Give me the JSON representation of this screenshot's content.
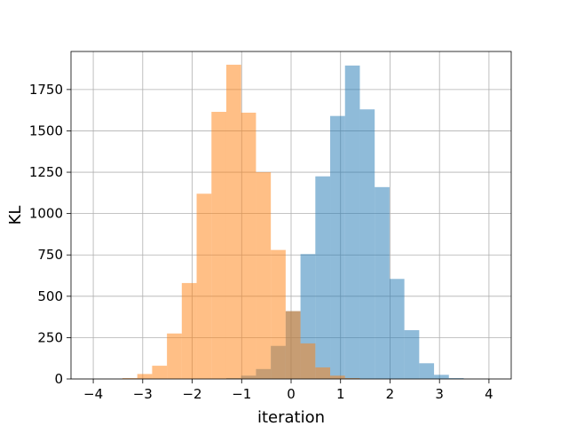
{
  "chart_data": {
    "type": "histogram",
    "title": "",
    "xlabel": "iteration",
    "ylabel": "KL",
    "xlim": [
      -4.45,
      4.45
    ],
    "ylim": [
      0,
      1980
    ],
    "xticks": [
      -4,
      -3,
      -2,
      -1,
      0,
      1,
      2,
      3,
      4
    ],
    "xtick_labels": [
      "−4",
      "−3",
      "−2",
      "−1",
      "0",
      "1",
      "2",
      "3",
      "4"
    ],
    "yticks": [
      0,
      250,
      500,
      750,
      1000,
      1250,
      1500,
      1750
    ],
    "ytick_labels": [
      "0",
      "250",
      "500",
      "750",
      "1000",
      "1250",
      "1500",
      "1750"
    ],
    "grid": true,
    "bin_edges": [
      -3.41,
      -3.11,
      -2.81,
      -2.51,
      -2.21,
      -1.91,
      -1.61,
      -1.31,
      -1.01,
      -0.71,
      -0.41,
      -0.11,
      0.19,
      0.49,
      0.79,
      1.09,
      1.39,
      1.69,
      1.99,
      2.29,
      2.59,
      2.89,
      3.19,
      3.49
    ],
    "series": [
      {
        "name": "",
        "color": "#1f77b4",
        "opacity": 0.5,
        "start_edge": -3.41,
        "bin_width": 0.3,
        "counts": [
          0,
          0,
          0,
          0,
          0,
          0,
          0,
          5,
          20,
          60,
          200,
          410,
          755,
          1225,
          1590,
          1895,
          1630,
          1160,
          605,
          295,
          95,
          25,
          5
        ]
      },
      {
        "name": "",
        "color": "#ff7f0e",
        "opacity": 0.5,
        "start_edge": -3.41,
        "bin_width": 0.3,
        "counts": [
          5,
          30,
          80,
          275,
          580,
          1120,
          1615,
          1900,
          1610,
          1250,
          780,
          410,
          215,
          70,
          20,
          5,
          0,
          0,
          0,
          0,
          0,
          0,
          0
        ]
      }
    ]
  }
}
